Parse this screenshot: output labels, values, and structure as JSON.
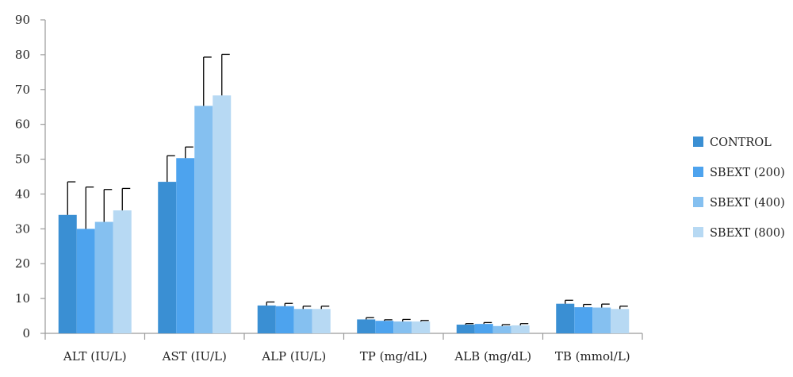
{
  "chart_data": {
    "type": "bar",
    "title": "",
    "xlabel": "",
    "ylabel": "",
    "ylim": [
      0,
      90
    ],
    "yticks": [
      0,
      10,
      20,
      30,
      40,
      50,
      60,
      70,
      80,
      90
    ],
    "grid": false,
    "legend_position": "right",
    "categories": [
      "ALT (IU/L)",
      "AST (IU/L)",
      "ALP (IU/L)",
      "TP (mg/dL)",
      "ALB (mg/dL)",
      "TB (mmol/L)"
    ],
    "series": [
      {
        "name": "CONTROL",
        "color": "#3a8fd3",
        "values": [
          34,
          43.5,
          8,
          4,
          2.5,
          8.5
        ],
        "error": [
          9.5,
          7.5,
          1,
          0.5,
          0.3,
          1
        ]
      },
      {
        "name": "SBEXT (200)",
        "color": "#4da3ee",
        "values": [
          30,
          50.3,
          7.8,
          3.6,
          2.7,
          7.5
        ],
        "error": [
          12,
          3.2,
          0.8,
          0.3,
          0.4,
          0.8
        ]
      },
      {
        "name": "SBEXT (400)",
        "color": "#85c0f0",
        "values": [
          32,
          65.3,
          7,
          3.4,
          2.1,
          7.4
        ],
        "error": [
          9.3,
          14,
          0.8,
          0.6,
          0.4,
          1
        ]
      },
      {
        "name": "SBEXT (800)",
        "color": "#b7d9f3",
        "values": [
          35.3,
          68.3,
          7,
          3.4,
          2.3,
          7
        ],
        "error": [
          6.3,
          11.8,
          0.8,
          0.3,
          0.5,
          0.8
        ]
      }
    ]
  }
}
